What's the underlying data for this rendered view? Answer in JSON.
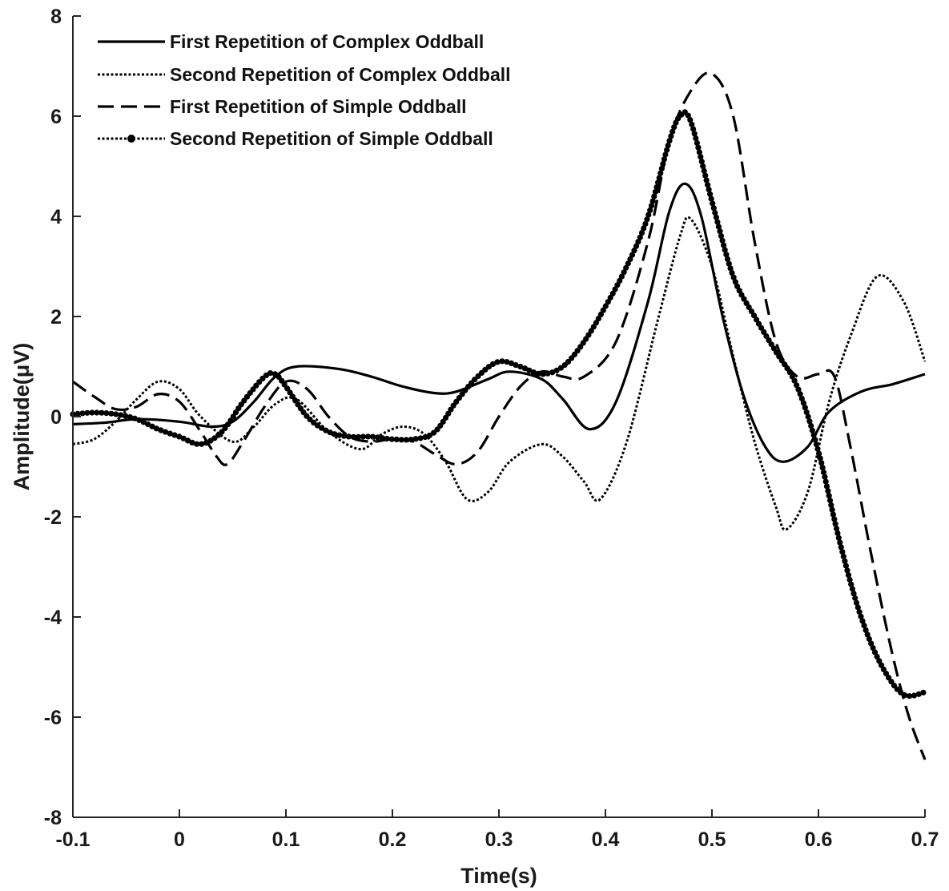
{
  "chart_data": {
    "type": "line",
    "title": "",
    "xlabel": "Time(s)",
    "ylabel": "Amplitude(μV)",
    "xlim": [
      -0.1,
      0.7
    ],
    "ylim": [
      -8,
      8
    ],
    "xticks": [
      -0.1,
      0,
      0.1,
      0.2,
      0.3,
      0.4,
      0.5,
      0.6,
      0.7
    ],
    "xtick_labels": [
      "-0.1",
      "0",
      "0.1",
      "0.2",
      "0.3",
      "0.4",
      "0.5",
      "0.6",
      "0.7"
    ],
    "yticks": [
      -8,
      -6,
      -4,
      -2,
      0,
      2,
      4,
      6,
      8
    ],
    "ytick_labels": [
      "-8",
      "-6",
      "-4",
      "-2",
      "0",
      "2",
      "4",
      "6",
      "8"
    ],
    "grid": false,
    "legend_position": "top-left",
    "series": [
      {
        "name": "First Repetition of Complex Oddball",
        "style": "solid",
        "color": "#000000",
        "points": [
          [
            -0.1,
            -0.15
          ],
          [
            -0.07,
            -0.12
          ],
          [
            -0.04,
            -0.05
          ],
          [
            0.0,
            -0.1
          ],
          [
            0.03,
            -0.2
          ],
          [
            0.05,
            -0.1
          ],
          [
            0.07,
            0.3
          ],
          [
            0.09,
            0.8
          ],
          [
            0.11,
            1.0
          ],
          [
            0.15,
            0.95
          ],
          [
            0.18,
            0.8
          ],
          [
            0.21,
            0.6
          ],
          [
            0.24,
            0.47
          ],
          [
            0.26,
            0.5
          ],
          [
            0.29,
            0.75
          ],
          [
            0.31,
            0.9
          ],
          [
            0.34,
            0.75
          ],
          [
            0.36,
            0.35
          ],
          [
            0.385,
            -0.25
          ],
          [
            0.41,
            0.3
          ],
          [
            0.44,
            2.3
          ],
          [
            0.46,
            4.1
          ],
          [
            0.475,
            4.65
          ],
          [
            0.49,
            4.0
          ],
          [
            0.51,
            2.0
          ],
          [
            0.53,
            0.4
          ],
          [
            0.55,
            -0.6
          ],
          [
            0.567,
            -0.9
          ],
          [
            0.59,
            -0.6
          ],
          [
            0.61,
            0.1
          ],
          [
            0.64,
            0.5
          ],
          [
            0.67,
            0.65
          ],
          [
            0.7,
            0.85
          ]
        ]
      },
      {
        "name": "Second Repetition of Complex Oddball",
        "style": "dotted",
        "color": "#000000",
        "points": [
          [
            -0.1,
            -0.55
          ],
          [
            -0.08,
            -0.45
          ],
          [
            -0.06,
            -0.1
          ],
          [
            -0.04,
            0.35
          ],
          [
            -0.02,
            0.7
          ],
          [
            0.0,
            0.55
          ],
          [
            0.02,
            0.0
          ],
          [
            0.05,
            -0.5
          ],
          [
            0.07,
            -0.2
          ],
          [
            0.09,
            0.25
          ],
          [
            0.11,
            0.35
          ],
          [
            0.14,
            -0.3
          ],
          [
            0.17,
            -0.65
          ],
          [
            0.19,
            -0.35
          ],
          [
            0.21,
            -0.2
          ],
          [
            0.23,
            -0.35
          ],
          [
            0.25,
            -0.9
          ],
          [
            0.27,
            -1.65
          ],
          [
            0.29,
            -1.5
          ],
          [
            0.31,
            -0.9
          ],
          [
            0.34,
            -0.55
          ],
          [
            0.36,
            -0.8
          ],
          [
            0.38,
            -1.3
          ],
          [
            0.395,
            -1.65
          ],
          [
            0.42,
            -0.5
          ],
          [
            0.45,
            2.0
          ],
          [
            0.47,
            3.6
          ],
          [
            0.48,
            3.95
          ],
          [
            0.5,
            3.0
          ],
          [
            0.52,
            1.2
          ],
          [
            0.54,
            -0.5
          ],
          [
            0.56,
            -1.8
          ],
          [
            0.57,
            -2.25
          ],
          [
            0.59,
            -1.5
          ],
          [
            0.61,
            0.3
          ],
          [
            0.63,
            1.6
          ],
          [
            0.655,
            2.8
          ],
          [
            0.68,
            2.3
          ],
          [
            0.7,
            1.1
          ]
        ]
      },
      {
        "name": "First Repetition of Simple Oddball",
        "style": "dashed",
        "color": "#000000",
        "points": [
          [
            -0.1,
            0.7
          ],
          [
            -0.08,
            0.4
          ],
          [
            -0.06,
            0.15
          ],
          [
            -0.04,
            0.2
          ],
          [
            -0.02,
            0.45
          ],
          [
            0.0,
            0.3
          ],
          [
            0.02,
            -0.3
          ],
          [
            0.035,
            -0.8
          ],
          [
            0.045,
            -0.95
          ],
          [
            0.06,
            -0.5
          ],
          [
            0.08,
            0.2
          ],
          [
            0.1,
            0.7
          ],
          [
            0.12,
            0.55
          ],
          [
            0.14,
            0.0
          ],
          [
            0.16,
            -0.4
          ],
          [
            0.18,
            -0.5
          ],
          [
            0.2,
            -0.45
          ],
          [
            0.22,
            -0.5
          ],
          [
            0.24,
            -0.75
          ],
          [
            0.26,
            -0.95
          ],
          [
            0.28,
            -0.7
          ],
          [
            0.3,
            0.0
          ],
          [
            0.32,
            0.6
          ],
          [
            0.34,
            0.9
          ],
          [
            0.36,
            0.8
          ],
          [
            0.38,
            0.8
          ],
          [
            0.41,
            1.5
          ],
          [
            0.44,
            3.5
          ],
          [
            0.46,
            5.5
          ],
          [
            0.48,
            6.5
          ],
          [
            0.5,
            6.85
          ],
          [
            0.52,
            6.0
          ],
          [
            0.54,
            3.5
          ],
          [
            0.56,
            1.5
          ],
          [
            0.58,
            0.8
          ],
          [
            0.6,
            0.85
          ],
          [
            0.615,
            0.8
          ],
          [
            0.63,
            -0.6
          ],
          [
            0.65,
            -2.8
          ],
          [
            0.67,
            -4.8
          ],
          [
            0.685,
            -6.0
          ],
          [
            0.7,
            -6.85
          ]
        ]
      },
      {
        "name": "Second Repetition of Simple Oddball",
        "style": "dotted-markers",
        "color": "#000000",
        "points": [
          [
            -0.1,
            0.05
          ],
          [
            -0.08,
            0.08
          ],
          [
            -0.06,
            0.05
          ],
          [
            -0.04,
            -0.05
          ],
          [
            -0.02,
            -0.25
          ],
          [
            0.0,
            -0.4
          ],
          [
            0.02,
            -0.55
          ],
          [
            0.04,
            -0.3
          ],
          [
            0.06,
            0.3
          ],
          [
            0.08,
            0.8
          ],
          [
            0.09,
            0.85
          ],
          [
            0.1,
            0.6
          ],
          [
            0.12,
            0.0
          ],
          [
            0.14,
            -0.3
          ],
          [
            0.16,
            -0.4
          ],
          [
            0.18,
            -0.4
          ],
          [
            0.2,
            -0.45
          ],
          [
            0.22,
            -0.45
          ],
          [
            0.24,
            -0.3
          ],
          [
            0.26,
            0.3
          ],
          [
            0.28,
            0.8
          ],
          [
            0.3,
            1.1
          ],
          [
            0.32,
            1.0
          ],
          [
            0.34,
            0.85
          ],
          [
            0.36,
            1.0
          ],
          [
            0.38,
            1.5
          ],
          [
            0.4,
            2.2
          ],
          [
            0.42,
            3.0
          ],
          [
            0.44,
            4.0
          ],
          [
            0.46,
            5.5
          ],
          [
            0.47,
            6.0
          ],
          [
            0.48,
            5.9
          ],
          [
            0.5,
            4.3
          ],
          [
            0.52,
            2.8
          ],
          [
            0.54,
            2.0
          ],
          [
            0.56,
            1.3
          ],
          [
            0.58,
            0.6
          ],
          [
            0.6,
            -0.7
          ],
          [
            0.62,
            -2.5
          ],
          [
            0.64,
            -4.0
          ],
          [
            0.66,
            -5.0
          ],
          [
            0.68,
            -5.55
          ],
          [
            0.7,
            -5.5
          ]
        ]
      }
    ]
  }
}
